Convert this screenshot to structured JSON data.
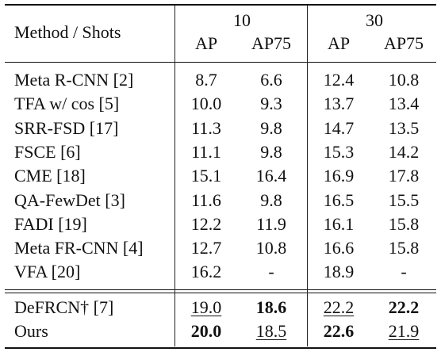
{
  "header": {
    "method_label": "Method / Shots",
    "shots": [
      "10",
      "30"
    ],
    "metrics": [
      "AP",
      "AP75",
      "AP",
      "AP75"
    ]
  },
  "rows": [
    {
      "method": "Meta R-CNN [2]",
      "v": [
        "8.7",
        "6.6",
        "12.4",
        "10.8"
      ]
    },
    {
      "method": "TFA w/ cos [5]",
      "v": [
        "10.0",
        "9.3",
        "13.7",
        "13.4"
      ]
    },
    {
      "method": "SRR-FSD [17]",
      "v": [
        "11.3",
        "9.8",
        "14.7",
        "13.5"
      ]
    },
    {
      "method": "FSCE [6]",
      "v": [
        "11.1",
        "9.8",
        "15.3",
        "14.2"
      ]
    },
    {
      "method": "CME [18]",
      "v": [
        "15.1",
        "16.4",
        "16.9",
        "17.8"
      ]
    },
    {
      "method": "QA-FewDet [3]",
      "v": [
        "11.6",
        "9.8",
        "16.5",
        "15.5"
      ]
    },
    {
      "method": "FADI [19]",
      "v": [
        "12.2",
        "11.9",
        "16.1",
        "15.8"
      ]
    },
    {
      "method": "Meta FR-CNN [4]",
      "v": [
        "12.7",
        "10.8",
        "16.6",
        "15.8"
      ]
    },
    {
      "method": "VFA [20]",
      "v": [
        "16.2",
        "-",
        "18.9",
        "-"
      ]
    }
  ],
  "bottom_rows": [
    {
      "method": "DeFRCN† [7]",
      "v": [
        "19.0",
        "18.6",
        "22.2",
        "22.2"
      ],
      "style": [
        "u",
        "b",
        "u",
        "b"
      ]
    },
    {
      "method": "Ours",
      "v": [
        "20.0",
        "18.5",
        "22.6",
        "21.9"
      ],
      "style": [
        "b",
        "u",
        "b",
        "u"
      ]
    }
  ]
}
